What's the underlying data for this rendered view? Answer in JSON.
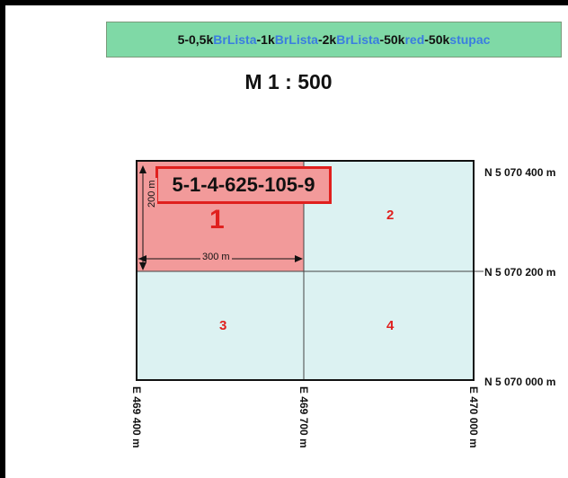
{
  "banner": {
    "parts": [
      {
        "text": "5-0,5k",
        "color": "dark"
      },
      {
        "text": "BrLista",
        "color": "blue"
      },
      {
        "text": "-1k",
        "color": "dark"
      },
      {
        "text": "BrLista",
        "color": "blue"
      },
      {
        "text": "-2k",
        "color": "dark"
      },
      {
        "text": "BrLista",
        "color": "blue"
      },
      {
        "text": "-50k",
        "color": "dark"
      },
      {
        "text": "red",
        "color": "blue"
      },
      {
        "text": "-50k",
        "color": "dark"
      },
      {
        "text": "stupac",
        "color": "blue"
      }
    ]
  },
  "scale": "M 1 : 500",
  "sheet_code": "5-1-4-625-105-9",
  "highlighted_quadrant": "1",
  "quadrants": [
    "2",
    "3",
    "4"
  ],
  "northing_labels": [
    "N 5 070 400 m",
    "N 5 070 200 m",
    "N 5 070 000 m"
  ],
  "easting_labels": [
    "E 469 400 m",
    "E 469 700 m",
    "E 470 000 m"
  ],
  "dimensions": {
    "width": "300 m",
    "height": "200 m"
  },
  "colors": {
    "highlight": "#f29a9a",
    "quadrant_fill": "#dcf2f2",
    "red": "#e0201e",
    "banner": "#7fd9a6",
    "blue_text": "#3a7de0"
  }
}
